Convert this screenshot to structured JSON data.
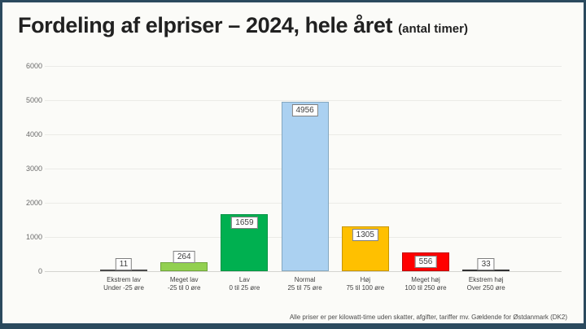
{
  "page": {
    "background_color": "#FBFBF8",
    "frame_color": "#2B4A5E"
  },
  "title": {
    "main": "Fordeling af elpriser – 2024, hele året",
    "suffix": "(antal timer)"
  },
  "footer": {
    "text": "Alle priser er per kilowatt-time uden skatter, afgifter, tariffer mv. Gældende for Østdanmark (DK2)"
  },
  "chart_data": {
    "type": "bar",
    "title": "Fordeling af elpriser – 2024, hele året (antal timer)",
    "xlabel": "",
    "ylabel": "",
    "ylim": [
      0,
      6000
    ],
    "yticks": [
      0,
      1000,
      2000,
      3000,
      4000,
      5000,
      6000
    ],
    "grid": true,
    "legend": false,
    "categories": [
      "Ekstrem lav",
      "Meget lav",
      "Lav",
      "Normal",
      "Høj",
      "Meget høj",
      "Ekstrem høj"
    ],
    "category_ranges": [
      "Under -25 øre",
      "-25 til 0 øre",
      "0 til 25 øre",
      "25 til 75 øre",
      "75 til 100 øre",
      "100 til 250 øre",
      "Over 250 øre"
    ],
    "values": [
      11,
      264,
      1659,
      4956,
      1305,
      556,
      33
    ],
    "value_labels": [
      "11",
      "264",
      "1659",
      "4956",
      "1305",
      "556",
      "33"
    ],
    "bar_fills": [
      "#4A4A4A",
      "#92D050",
      "#00B050",
      "#ABD1F1",
      "#FFC000",
      "#FF0000",
      "#303030"
    ],
    "bar_borders": [
      "#4A4A4A",
      "#6FA43C",
      "#019344",
      "#85A8C0",
      "#C79500",
      "#C00000",
      "#303030"
    ]
  }
}
